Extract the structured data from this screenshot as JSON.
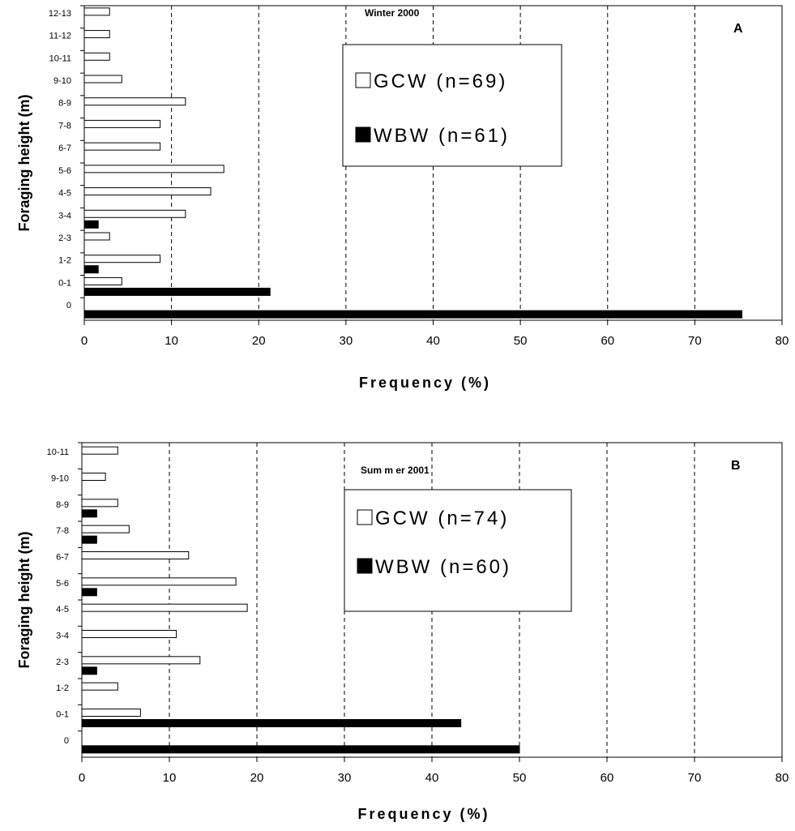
{
  "chart_data": [
    {
      "type": "bar",
      "orientation": "horizontal",
      "title": "Winter 2000",
      "panel_label": "A",
      "xlabel": "Frequency (%)",
      "ylabel": "Foraging height (m)",
      "xlim": [
        0,
        80
      ],
      "x_ticks": [
        "0",
        "10",
        "20",
        "30",
        "40",
        "50",
        "60",
        "70",
        "80"
      ],
      "grid": "vertical dashed",
      "legend_position": "top-right",
      "categories": [
        "0",
        "0-1",
        "1-2",
        "2-3",
        "3-4",
        "4-5",
        "5-6",
        "6-7",
        "7-8",
        "8-9",
        "9-10",
        "10-11",
        "11-12",
        "12-13"
      ],
      "series": [
        {
          "name": "GCW (n=69)",
          "color": "#ffffff",
          "values": [
            0,
            4.3,
            8.7,
            2.9,
            11.6,
            14.5,
            16.0,
            8.7,
            8.7,
            11.6,
            4.3,
            2.9,
            2.9,
            2.9
          ]
        },
        {
          "name": "WBW (n=61)",
          "color": "#000000",
          "values": [
            75.4,
            21.3,
            1.6,
            0,
            1.6,
            0,
            0,
            0,
            0,
            0,
            0,
            0,
            0,
            0
          ]
        }
      ]
    },
    {
      "type": "bar",
      "orientation": "horizontal",
      "title": "Sum m er 2001",
      "panel_label": "B",
      "xlabel": "Frequency (%)",
      "ylabel": "Foraging height (m)",
      "xlim": [
        0,
        80
      ],
      "x_ticks": [
        "0",
        "10",
        "20",
        "30",
        "40",
        "50",
        "60",
        "70",
        "80"
      ],
      "grid": "vertical dashed",
      "legend_position": "top-right",
      "categories": [
        "0",
        "0-1",
        "1-2",
        "2-3",
        "3-4",
        "4-5",
        "5-6",
        "6-7",
        "7-8",
        "8-9",
        "9-10",
        "10-11"
      ],
      "series": [
        {
          "name": "GCW (n=74)",
          "color": "#ffffff",
          "values": [
            0,
            6.7,
            4.1,
            13.5,
            10.8,
            18.9,
            17.6,
            12.2,
            5.4,
            4.1,
            2.7,
            4.1
          ]
        },
        {
          "name": "WBW (n=60)",
          "color": "#000000",
          "values": [
            50.0,
            43.3,
            0,
            1.7,
            0,
            0,
            1.7,
            0,
            1.7,
            1.7,
            0,
            0
          ]
        }
      ]
    }
  ]
}
